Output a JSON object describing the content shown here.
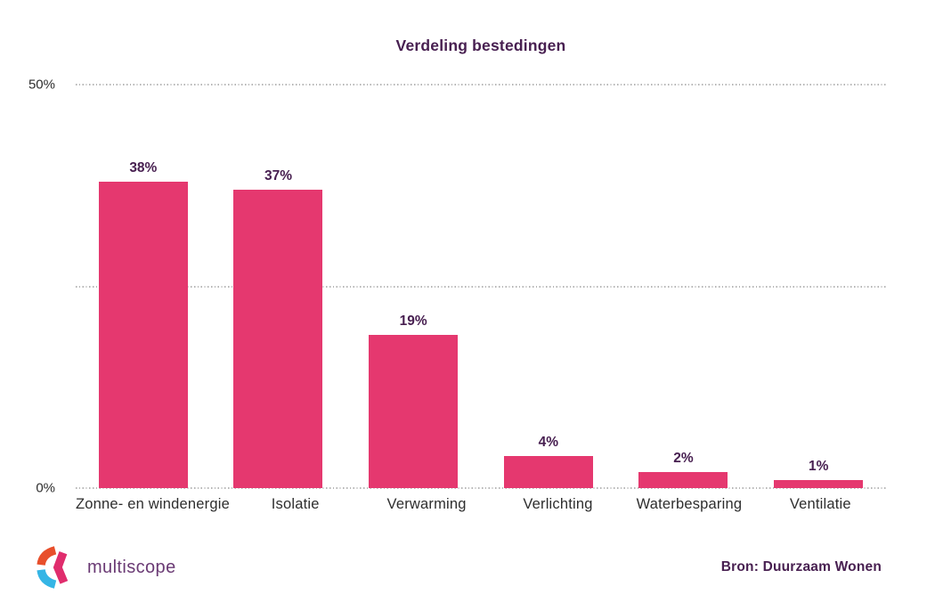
{
  "chart_data": {
    "type": "bar",
    "title": "Verdeling bestedingen",
    "categories": [
      "Zonne- en windenergie",
      "Isolatie",
      "Verwarming",
      "Verlichting",
      "Waterbesparing",
      "Ventilatie"
    ],
    "values": [
      38,
      37,
      19,
      4,
      2,
      1
    ],
    "value_labels": [
      "38%",
      "37%",
      "19%",
      "4%",
      "2%",
      "1%"
    ],
    "xlabel": "",
    "ylabel": "",
    "ylim": [
      0,
      50
    ],
    "yticks": [
      {
        "value": 50,
        "label": "50%"
      },
      {
        "value": 25,
        "label": ""
      },
      {
        "value": 0,
        "label": "0%"
      }
    ],
    "grid": "horizontal-dotted",
    "legend": "none",
    "colors": {
      "bar": "#e5386f",
      "title": "#482051",
      "value_label": "#482051",
      "axis_text": "#2e2e2e",
      "gridline": "#b5b5b5"
    }
  },
  "footer": {
    "brand": {
      "name": "multiscope",
      "logo_colors": {
        "orange": "#e84f2b",
        "pink": "#e02d6d",
        "cyan": "#35b5e5",
        "text": "#6a3a74"
      }
    },
    "source": "Bron: Duurzaam Wonen"
  }
}
